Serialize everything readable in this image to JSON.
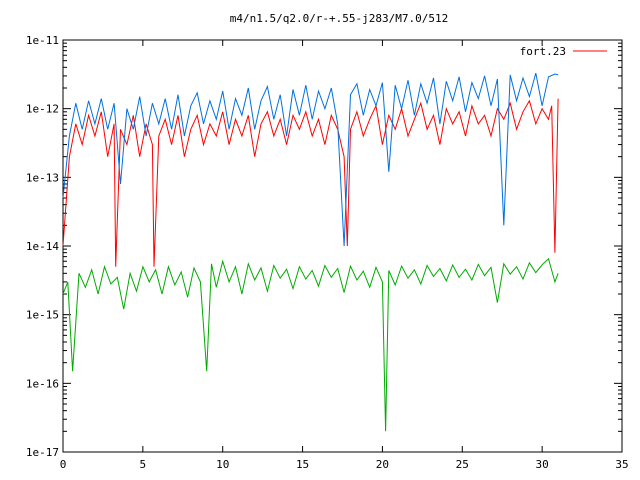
{
  "chart_data": {
    "type": "line",
    "title": "m4/n1.5/q2.0/r-+.55-j283/M7.0/512",
    "xlabel": "",
    "ylabel": "",
    "xlim": [
      0,
      35
    ],
    "ylim": [
      1e-17,
      1e-11
    ],
    "y_scale": "log",
    "grid": false,
    "legend_position": "top-right",
    "x_ticks": [
      0,
      5,
      10,
      15,
      20,
      25,
      30,
      35
    ],
    "x_tick_labels": [
      "0",
      "5",
      "10",
      "15",
      "20",
      "25",
      "30",
      "35"
    ],
    "y_ticks": [
      1e-17,
      1e-16,
      1e-15,
      1e-14,
      1e-13,
      1e-12,
      1e-11
    ],
    "y_tick_labels": [
      "1e-17",
      "1e-16",
      "1e-15",
      "1e-14",
      "1e-13",
      "1e-12",
      "1e-11"
    ],
    "series": [
      {
        "name": "fort.23",
        "color": "#ff0000",
        "x": [
          0,
          0.4,
          0.8,
          1.2,
          1.6,
          2.0,
          2.4,
          2.8,
          3.2,
          3.3,
          3.6,
          4.0,
          4.4,
          4.8,
          5.2,
          5.6,
          5.7,
          6.0,
          6.4,
          6.8,
          7.2,
          7.6,
          8.0,
          8.4,
          8.8,
          9.2,
          9.6,
          10.0,
          10.4,
          10.8,
          11.2,
          11.6,
          12.0,
          12.4,
          12.8,
          13.2,
          13.6,
          14.0,
          14.4,
          14.8,
          15.2,
          15.6,
          16.0,
          16.4,
          16.8,
          17.2,
          17.6,
          17.8,
          18.0,
          18.4,
          18.8,
          19.2,
          19.6,
          20.0,
          20.4,
          20.8,
          21.2,
          21.6,
          22.0,
          22.4,
          22.8,
          23.2,
          23.6,
          24.0,
          24.4,
          24.8,
          25.2,
          25.6,
          26.0,
          26.4,
          26.8,
          27.2,
          27.6,
          28.0,
          28.4,
          28.8,
          29.2,
          29.6,
          30.0,
          30.4,
          30.6,
          30.8,
          31.0
        ],
        "y": [
          1e-14,
          2e-13,
          6e-13,
          3e-13,
          8e-13,
          4e-13,
          9e-13,
          2e-13,
          6e-13,
          5e-15,
          5e-13,
          3e-13,
          8e-13,
          2e-13,
          6e-13,
          3e-13,
          5e-15,
          4e-13,
          7e-13,
          3e-13,
          8e-13,
          2e-13,
          5e-13,
          8e-13,
          3e-13,
          6e-13,
          4e-13,
          9e-13,
          3e-13,
          7e-13,
          4e-13,
          8e-13,
          2e-13,
          6e-13,
          9e-13,
          4e-13,
          7e-13,
          3e-13,
          8e-13,
          5e-13,
          9e-13,
          4e-13,
          7e-13,
          3e-13,
          8e-13,
          5e-13,
          2e-13,
          1e-14,
          5e-13,
          9e-13,
          4e-13,
          7e-13,
          1.1e-12,
          3e-13,
          8e-13,
          5e-13,
          1e-12,
          4e-13,
          7e-13,
          1.2e-12,
          5e-13,
          8e-13,
          3e-13,
          1e-12,
          6e-13,
          9e-13,
          4e-13,
          1.1e-12,
          6e-13,
          8e-13,
          4e-13,
          1e-12,
          7e-13,
          1.2e-12,
          5e-13,
          9e-13,
          1.3e-12,
          6e-13,
          1e-12,
          7e-13,
          1.1e-12,
          8e-15,
          1.4e-12
        ]
      },
      {
        "name": "",
        "color": "#0070e0",
        "x": [
          0,
          0.4,
          0.8,
          1.2,
          1.6,
          2.0,
          2.4,
          2.8,
          3.2,
          3.6,
          4.0,
          4.4,
          4.8,
          5.2,
          5.6,
          6.0,
          6.4,
          6.8,
          7.2,
          7.6,
          8.0,
          8.4,
          8.8,
          9.2,
          9.6,
          10.0,
          10.4,
          10.8,
          11.2,
          11.6,
          12.0,
          12.4,
          12.8,
          13.2,
          13.6,
          14.0,
          14.4,
          14.8,
          15.2,
          15.6,
          16.0,
          16.4,
          16.8,
          17.2,
          17.6,
          18.0,
          18.4,
          18.8,
          19.2,
          19.6,
          20.0,
          20.4,
          20.8,
          21.2,
          21.6,
          22.0,
          22.4,
          22.8,
          23.2,
          23.6,
          24.0,
          24.4,
          24.8,
          25.2,
          25.6,
          26.0,
          26.4,
          26.8,
          27.2,
          27.6,
          28.0,
          28.4,
          28.8,
          29.2,
          29.6,
          30.0,
          30.4,
          30.8,
          31.0
        ],
        "y": [
          5e-14,
          4e-13,
          1.2e-12,
          5e-13,
          1.3e-12,
          6e-13,
          1.4e-12,
          5e-13,
          1.2e-12,
          8e-14,
          1e-12,
          5e-13,
          1.5e-12,
          4e-13,
          1.2e-12,
          6e-13,
          1.4e-12,
          5e-13,
          1.6e-12,
          4e-13,
          1.1e-12,
          1.7e-12,
          6e-13,
          1.3e-12,
          7e-13,
          1.8e-12,
          5e-13,
          1.4e-12,
          8e-13,
          2e-12,
          5e-13,
          1.3e-12,
          2.1e-12,
          7e-13,
          1.6e-12,
          4e-13,
          1.9e-12,
          8e-13,
          2.2e-12,
          7e-13,
          1.8e-12,
          1e-12,
          2e-12,
          6e-13,
          1e-14,
          1.6e-12,
          2.3e-12,
          8e-13,
          1.9e-12,
          1.1e-12,
          2.4e-12,
          1.2e-13,
          2.2e-12,
          1e-12,
          2.6e-12,
          8e-13,
          2.3e-12,
          1.2e-12,
          2.8e-12,
          6e-13,
          2.5e-12,
          1.3e-12,
          2.9e-12,
          9e-13,
          2.4e-12,
          1.4e-12,
          3e-12,
          1.1e-12,
          2.7e-12,
          2e-14,
          3.1e-12,
          1.3e-12,
          2.8e-12,
          1.5e-12,
          3.3e-12,
          1.1e-12,
          2.9e-12,
          3.2e-12,
          3.1e-12
        ]
      },
      {
        "name": "",
        "color": "#00aa00",
        "x": [
          0,
          0.3,
          0.6,
          1.0,
          1.4,
          1.8,
          2.2,
          2.6,
          3.0,
          3.4,
          3.8,
          4.2,
          4.6,
          5.0,
          5.4,
          5.8,
          6.2,
          6.6,
          7.0,
          7.4,
          7.8,
          8.2,
          8.6,
          9.0,
          9.3,
          9.6,
          10.0,
          10.4,
          10.8,
          11.2,
          11.6,
          12.0,
          12.4,
          12.8,
          13.2,
          13.6,
          14.0,
          14.4,
          14.8,
          15.2,
          15.6,
          16.0,
          16.4,
          16.8,
          17.2,
          17.6,
          18.0,
          18.4,
          18.8,
          19.2,
          19.6,
          20.0,
          20.2,
          20.4,
          20.8,
          21.2,
          21.6,
          22.0,
          22.4,
          22.8,
          23.2,
          23.6,
          24.0,
          24.4,
          24.8,
          25.2,
          25.6,
          26.0,
          26.4,
          26.8,
          27.2,
          27.6,
          28.0,
          28.4,
          28.8,
          29.2,
          29.6,
          30.0,
          30.4,
          30.8,
          31.0
        ],
        "y": [
          2e-15,
          3e-15,
          1.5e-16,
          4e-15,
          2.5e-15,
          4.5e-15,
          2e-15,
          5e-15,
          2.8e-15,
          3.5e-15,
          1.2e-15,
          4e-15,
          2.2e-15,
          5e-15,
          3e-15,
          4.5e-15,
          2e-15,
          5e-15,
          2.7e-15,
          4.2e-15,
          1.8e-15,
          4.8e-15,
          3e-15,
          1.5e-16,
          5.5e-15,
          2.5e-15,
          6e-15,
          3e-15,
          5e-15,
          2e-15,
          5.5e-15,
          3.2e-15,
          4.8e-15,
          2.2e-15,
          5.2e-15,
          3.4e-15,
          4.6e-15,
          2.4e-15,
          5e-15,
          3.3e-15,
          4.4e-15,
          2.6e-15,
          5.2e-15,
          3.5e-15,
          4.7e-15,
          2.1e-15,
          5.1e-15,
          3.2e-15,
          4.3e-15,
          2.5e-15,
          4.9e-15,
          3e-15,
          2e-17,
          4.4e-15,
          2.7e-15,
          5.1e-15,
          3.4e-15,
          4.5e-15,
          2.8e-15,
          5.2e-15,
          3.6e-15,
          4.7e-15,
          3.1e-15,
          5.3e-15,
          3.5e-15,
          4.6e-15,
          3.2e-15,
          5.4e-15,
          3.7e-15,
          4.9e-15,
          1.5e-15,
          5.5e-15,
          3.9e-15,
          5e-15,
          3.3e-15,
          5.7e-15,
          4.1e-15,
          5.3e-15,
          6.5e-15,
          3e-15,
          4e-15
        ]
      }
    ]
  }
}
